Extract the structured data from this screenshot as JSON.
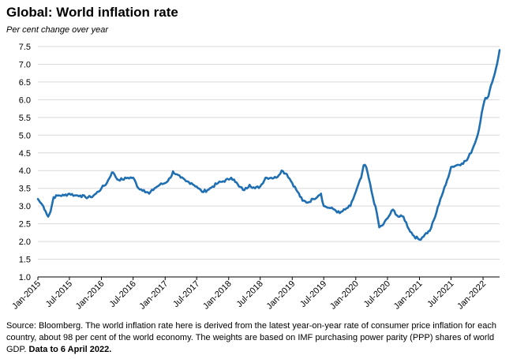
{
  "header": {
    "title": "Global: World inflation rate",
    "subtitle": "Per cent change over year"
  },
  "footer": {
    "source_text": "Source: Bloomberg. The world inflation rate here is derived from the latest year-on-year rate of consumer price inflation for each country, about 98 per cent of the world economy.  The weights are based on IMF purchasing power parity (PPP) shares of world GDP.",
    "source_bold": "Data to 6 April 2022."
  },
  "chart_data": {
    "type": "line",
    "title": "Global: World inflation rate",
    "subtitle": "Per cent change over year",
    "xlabel": "",
    "ylabel": "",
    "ylim": [
      1.0,
      7.5
    ],
    "yticks": [
      "1.0",
      "1.5",
      "2.0",
      "2.5",
      "3.0",
      "3.5",
      "4.0",
      "4.5",
      "5.0",
      "5.5",
      "6.0",
      "6.5",
      "7.0",
      "7.5"
    ],
    "xticks": [
      "Jan-2015",
      "Jul-2015",
      "Jan-2016",
      "Jul-2016",
      "Jan-2017",
      "Jul-2017",
      "Jan-2018",
      "Jul-2018",
      "Jan-2019",
      "Jul-2019",
      "Jan-2020",
      "Jul-2020",
      "Jan-2021",
      "Jul-2021",
      "Jan-2022"
    ],
    "xlim": [
      "2015-01-01",
      "2022-04-06"
    ],
    "grid": "horizontal",
    "legend": "none",
    "line_color": "#1f6fb2",
    "series": [
      {
        "points": [
          [
            "2015-01-01",
            3.2
          ],
          [
            "2015-01-15",
            3.1
          ],
          [
            "2015-02-01",
            3.0
          ],
          [
            "2015-02-15",
            2.85
          ],
          [
            "2015-03-01",
            2.7
          ],
          [
            "2015-03-15",
            2.85
          ],
          [
            "2015-04-01",
            3.25
          ],
          [
            "2015-05-01",
            3.3
          ],
          [
            "2015-06-01",
            3.3
          ],
          [
            "2015-07-01",
            3.35
          ],
          [
            "2015-08-01",
            3.3
          ],
          [
            "2015-09-01",
            3.3
          ],
          [
            "2015-10-01",
            3.25
          ],
          [
            "2015-11-01",
            3.25
          ],
          [
            "2015-12-01",
            3.35
          ],
          [
            "2016-01-01",
            3.5
          ],
          [
            "2016-02-01",
            3.65
          ],
          [
            "2016-03-01",
            3.95
          ],
          [
            "2016-03-15",
            3.9
          ],
          [
            "2016-04-01",
            3.75
          ],
          [
            "2016-05-01",
            3.75
          ],
          [
            "2016-06-01",
            3.8
          ],
          [
            "2016-07-01",
            3.8
          ],
          [
            "2016-08-01",
            3.5
          ],
          [
            "2016-09-01",
            3.45
          ],
          [
            "2016-10-01",
            3.35
          ],
          [
            "2016-11-01",
            3.5
          ],
          [
            "2016-12-01",
            3.6
          ],
          [
            "2017-01-01",
            3.65
          ],
          [
            "2017-02-01",
            3.8
          ],
          [
            "2017-02-15",
            3.98
          ],
          [
            "2017-03-01",
            3.9
          ],
          [
            "2017-04-01",
            3.8
          ],
          [
            "2017-05-01",
            3.7
          ],
          [
            "2017-06-01",
            3.65
          ],
          [
            "2017-07-01",
            3.55
          ],
          [
            "2017-08-01",
            3.4
          ],
          [
            "2017-09-01",
            3.45
          ],
          [
            "2017-10-01",
            3.55
          ],
          [
            "2017-11-01",
            3.65
          ],
          [
            "2017-12-01",
            3.7
          ],
          [
            "2018-01-01",
            3.75
          ],
          [
            "2018-01-15",
            3.8
          ],
          [
            "2018-02-01",
            3.75
          ],
          [
            "2018-03-01",
            3.55
          ],
          [
            "2018-04-01",
            3.45
          ],
          [
            "2018-05-01",
            3.6
          ],
          [
            "2018-06-01",
            3.5
          ],
          [
            "2018-07-01",
            3.55
          ],
          [
            "2018-08-01",
            3.8
          ],
          [
            "2018-09-01",
            3.8
          ],
          [
            "2018-10-01",
            3.8
          ],
          [
            "2018-11-01",
            4.0
          ],
          [
            "2018-12-01",
            3.9
          ],
          [
            "2019-01-01",
            3.65
          ],
          [
            "2019-02-01",
            3.4
          ],
          [
            "2019-03-01",
            3.15
          ],
          [
            "2019-04-01",
            3.1
          ],
          [
            "2019-05-01",
            3.2
          ],
          [
            "2019-06-01",
            3.3
          ],
          [
            "2019-06-15",
            3.35
          ],
          [
            "2019-07-01",
            3.0
          ],
          [
            "2019-08-01",
            2.95
          ],
          [
            "2019-09-01",
            2.9
          ],
          [
            "2019-10-01",
            2.8
          ],
          [
            "2019-11-01",
            2.9
          ],
          [
            "2019-12-01",
            3.0
          ],
          [
            "2020-01-01",
            3.4
          ],
          [
            "2020-02-01",
            3.8
          ],
          [
            "2020-02-15",
            4.15
          ],
          [
            "2020-03-01",
            4.1
          ],
          [
            "2020-03-15",
            3.8
          ],
          [
            "2020-04-01",
            3.4
          ],
          [
            "2020-05-01",
            2.8
          ],
          [
            "2020-05-15",
            2.4
          ],
          [
            "2020-06-01",
            2.45
          ],
          [
            "2020-07-01",
            2.65
          ],
          [
            "2020-08-01",
            2.9
          ],
          [
            "2020-09-01",
            2.7
          ],
          [
            "2020-10-01",
            2.7
          ],
          [
            "2020-11-01",
            2.35
          ],
          [
            "2020-12-01",
            2.15
          ],
          [
            "2021-01-01",
            2.05
          ],
          [
            "2021-02-01",
            2.2
          ],
          [
            "2021-03-01",
            2.3
          ],
          [
            "2021-04-01",
            2.7
          ],
          [
            "2021-05-01",
            3.2
          ],
          [
            "2021-06-01",
            3.6
          ],
          [
            "2021-07-01",
            4.1
          ],
          [
            "2021-08-01",
            4.15
          ],
          [
            "2021-09-01",
            4.2
          ],
          [
            "2021-10-01",
            4.3
          ],
          [
            "2021-11-01",
            4.6
          ],
          [
            "2021-12-01",
            5.0
          ],
          [
            "2022-01-01",
            5.8
          ],
          [
            "2022-01-15",
            6.05
          ],
          [
            "2022-02-01",
            6.1
          ],
          [
            "2022-02-15",
            6.4
          ],
          [
            "2022-03-01",
            6.6
          ],
          [
            "2022-03-15",
            6.85
          ],
          [
            "2022-04-01",
            7.25
          ],
          [
            "2022-04-06",
            7.4
          ]
        ]
      }
    ]
  }
}
